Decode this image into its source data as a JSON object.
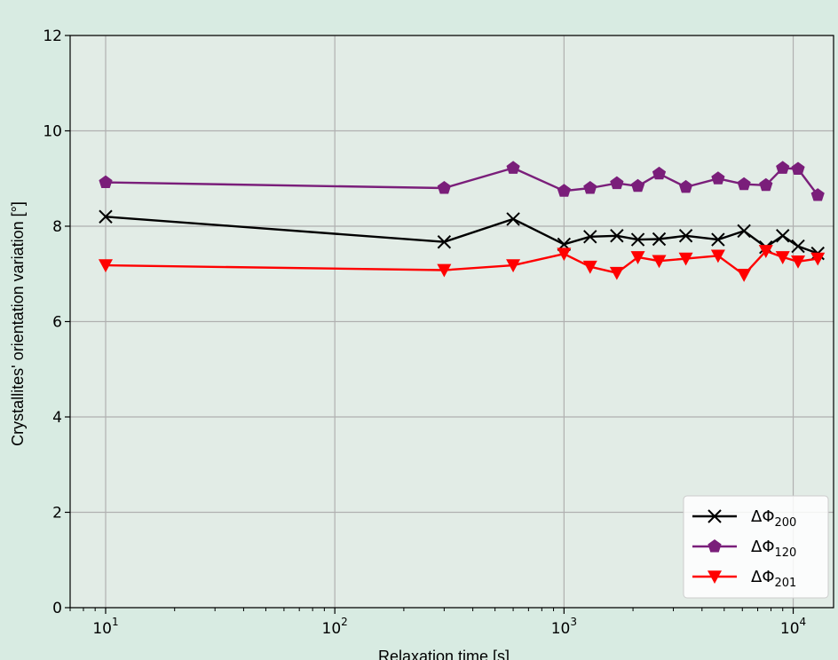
{
  "colors": {
    "page_background": "#d8ebe2",
    "plot_background": "#e2ece6",
    "grid": "#b0b0b0"
  },
  "chart_data": {
    "type": "line",
    "title": "",
    "xlabel": "Relaxation time [s]",
    "ylabel": "Crystallites' orientation variation [°]",
    "xscale": "log",
    "xlim": [
      7,
      15000
    ],
    "ylim": [
      0,
      12
    ],
    "yticks": [
      0,
      2,
      4,
      6,
      8,
      10,
      12
    ],
    "ytick_labels": [
      "0",
      "2",
      "4",
      "6",
      "8",
      "10",
      "12"
    ],
    "xticks": [
      10,
      100,
      1000,
      10000
    ],
    "xtick_labels": [
      {
        "base": "10",
        "exp": "1"
      },
      {
        "base": "10",
        "exp": "2"
      },
      {
        "base": "10",
        "exp": "3"
      },
      {
        "base": "10",
        "exp": "4"
      }
    ],
    "grid": true,
    "legend_position": "lower-right",
    "series": [
      {
        "name": "ΔΦ",
        "name_sub": "200",
        "color": "#000000",
        "marker": "x",
        "x": [
          10,
          300,
          600,
          1000,
          1300,
          1700,
          2100,
          2600,
          3400,
          4700,
          6100,
          7600,
          9000,
          10500,
          12800
        ],
        "y": [
          8.2,
          7.67,
          8.15,
          7.62,
          7.78,
          7.8,
          7.72,
          7.73,
          7.8,
          7.72,
          7.9,
          7.56,
          7.8,
          7.58,
          7.43
        ]
      },
      {
        "name": "ΔΦ",
        "name_sub": "120",
        "color": "#7a1e7a",
        "marker": "pentagon",
        "x": [
          10,
          300,
          600,
          1000,
          1300,
          1700,
          2100,
          2600,
          3400,
          4700,
          6100,
          7600,
          9000,
          10500,
          12800
        ],
        "y": [
          8.92,
          8.8,
          9.22,
          8.74,
          8.8,
          8.9,
          8.84,
          9.1,
          8.82,
          9.0,
          8.88,
          8.86,
          9.22,
          9.2,
          8.65
        ]
      },
      {
        "name": "ΔΦ",
        "name_sub": "201",
        "color": "#ff0000",
        "marker": "triangle-down",
        "x": [
          10,
          300,
          600,
          1000,
          1300,
          1700,
          2100,
          2600,
          3400,
          4700,
          6100,
          7600,
          9000,
          10500,
          12800
        ],
        "y": [
          7.18,
          7.08,
          7.18,
          7.42,
          7.15,
          7.02,
          7.35,
          7.27,
          7.32,
          7.38,
          6.98,
          7.48,
          7.35,
          7.26,
          7.32
        ]
      }
    ]
  }
}
